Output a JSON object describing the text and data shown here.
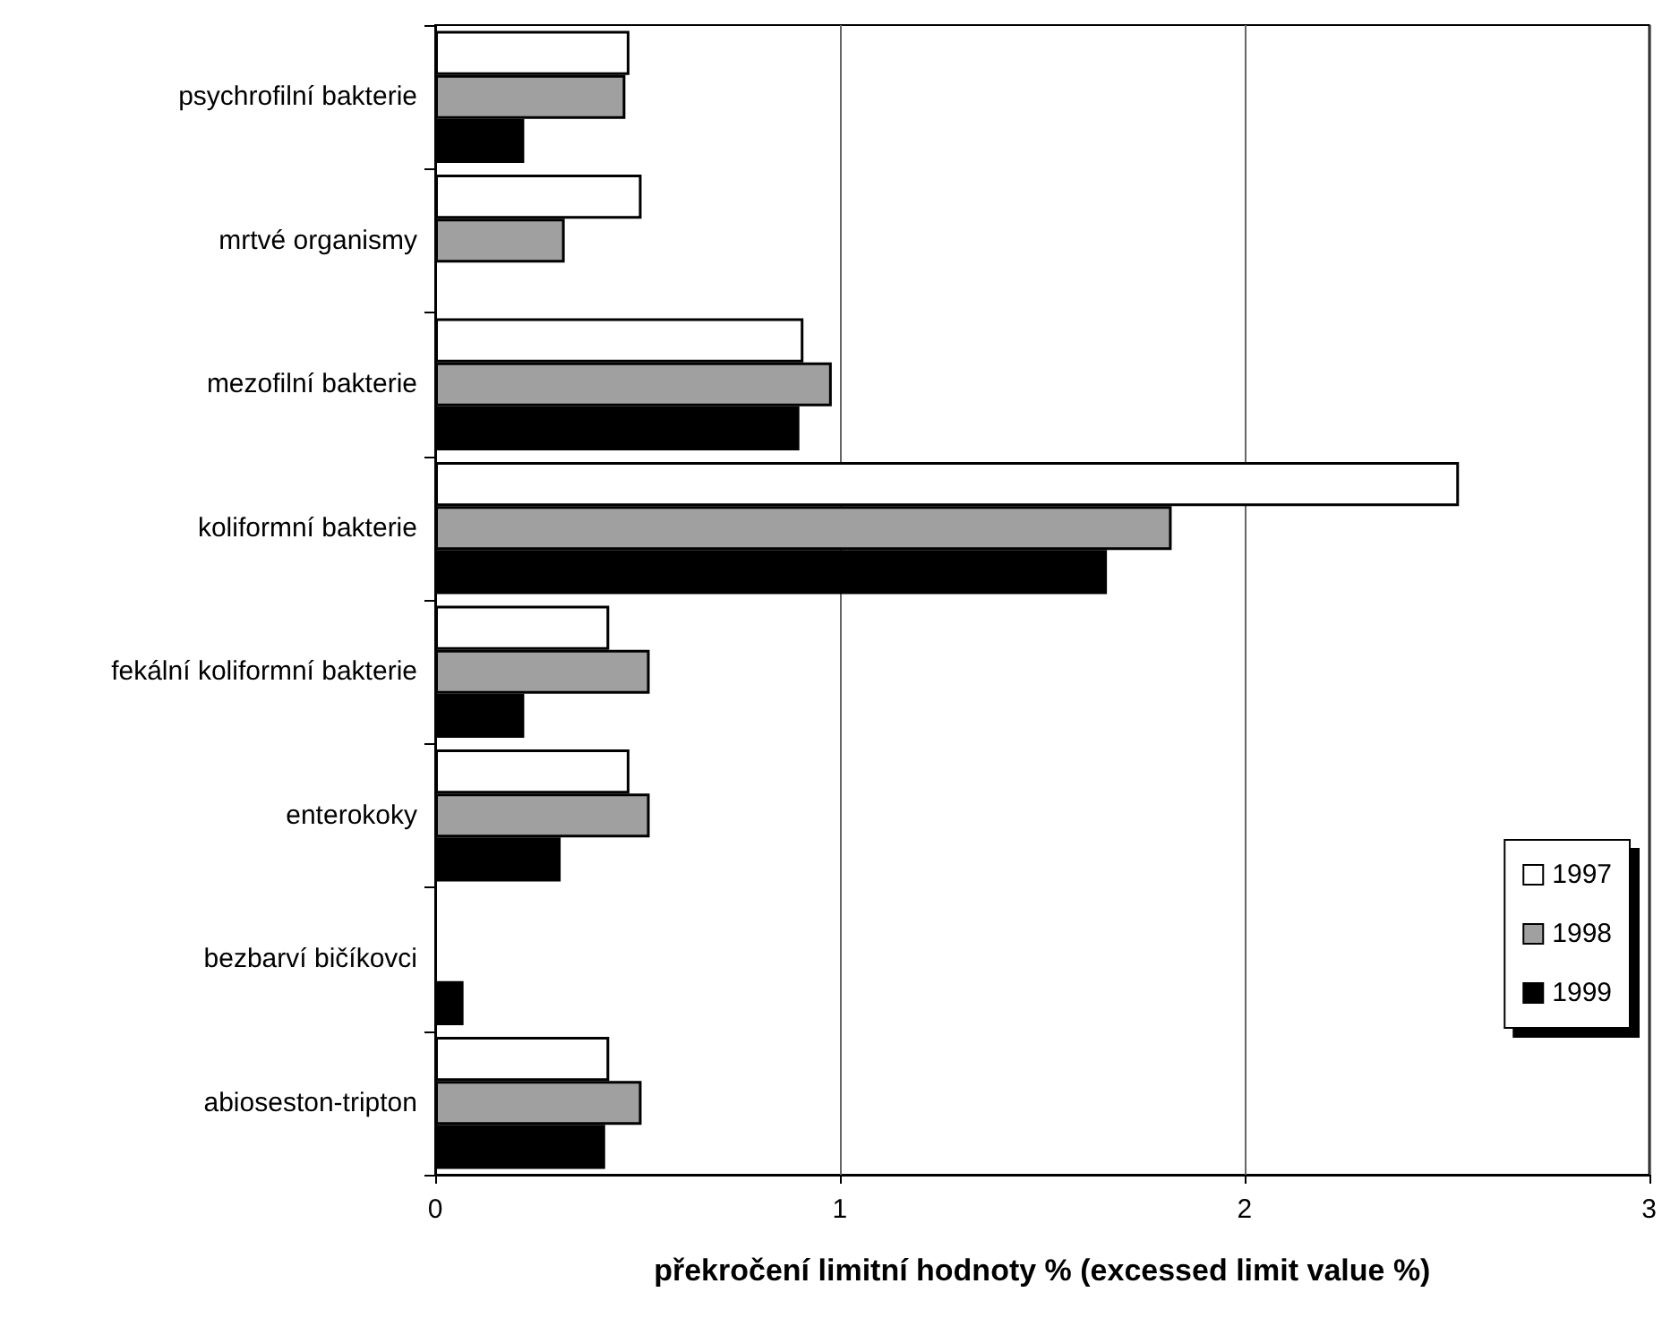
{
  "chart_data": {
    "type": "bar",
    "orientation": "horizontal",
    "xlabel": "překročení limitní hodnoty % (excessed limit value %)",
    "categories": [
      "psychrofilní bakterie",
      "mrtvé organismy",
      "mezofilní bakterie",
      "koliformní bakterie",
      "fekální koliformní bakterie",
      "enterokoky",
      "bezbarví bičíkovci",
      "abioseston-tripton"
    ],
    "series": [
      {
        "name": "1997",
        "color": "#ffffff",
        "values": [
          0.48,
          0.51,
          0.91,
          2.53,
          0.43,
          0.48,
          null,
          0.43
        ]
      },
      {
        "name": "1998",
        "color": "#a0a0a0",
        "values": [
          0.47,
          0.32,
          0.98,
          1.82,
          0.53,
          0.53,
          null,
          0.51
        ]
      },
      {
        "name": "1999",
        "color": "#000000",
        "values": [
          0.22,
          null,
          0.9,
          1.66,
          0.22,
          0.31,
          0.07,
          0.42
        ]
      }
    ],
    "xlim": [
      0,
      3
    ],
    "xticks": [
      0,
      1,
      2,
      3
    ],
    "grid": "x",
    "legend": "bottom right"
  }
}
